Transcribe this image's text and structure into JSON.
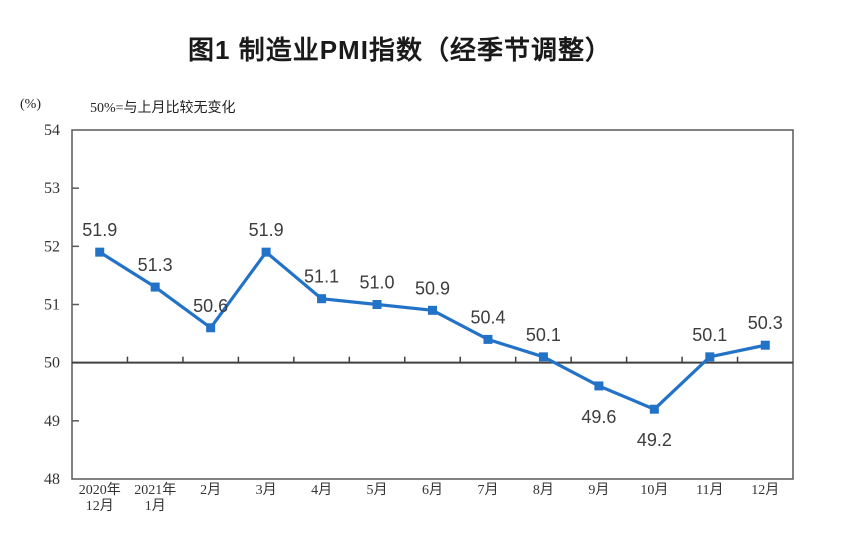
{
  "chart_data": {
    "type": "line",
    "title": "图1 制造业PMI指数（经季节调整）",
    "unit_label": "(%)",
    "note": "50%=与上月比较无变化",
    "categories": [
      "2020年\n12月",
      "2021年\n1月",
      "2月",
      "3月",
      "4月",
      "5月",
      "6月",
      "7月",
      "8月",
      "9月",
      "10月",
      "11月",
      "12月"
    ],
    "values": [
      51.9,
      51.3,
      50.6,
      51.9,
      51.1,
      51.0,
      50.9,
      50.4,
      50.1,
      49.6,
      49.2,
      50.1,
      50.3
    ],
    "data_labels": [
      "51.9",
      "51.3",
      "50.6",
      "51.9",
      "51.1",
      "51.0",
      "50.9",
      "50.4",
      "50.1",
      "49.6",
      "49.2",
      "50.1",
      "50.3"
    ],
    "label_positions": [
      "above",
      "above",
      "above",
      "above",
      "above",
      "above",
      "above",
      "above",
      "above",
      "below",
      "below",
      "above",
      "above"
    ],
    "ylim": [
      48,
      54
    ],
    "ytick_step": 1,
    "yticks": [
      48,
      49,
      50,
      51,
      52,
      53,
      54
    ],
    "reference_line": 50,
    "grid": false,
    "legend": "none",
    "marker": "square",
    "colors": {
      "line": "#2272C8",
      "marker": "#2272C8",
      "data_label": "#3D3D3D",
      "axis": "#595959",
      "reference_line": "#404040",
      "tick_label": "#333333",
      "title": "#1A1A1A",
      "background": "#FFFFFF"
    }
  }
}
